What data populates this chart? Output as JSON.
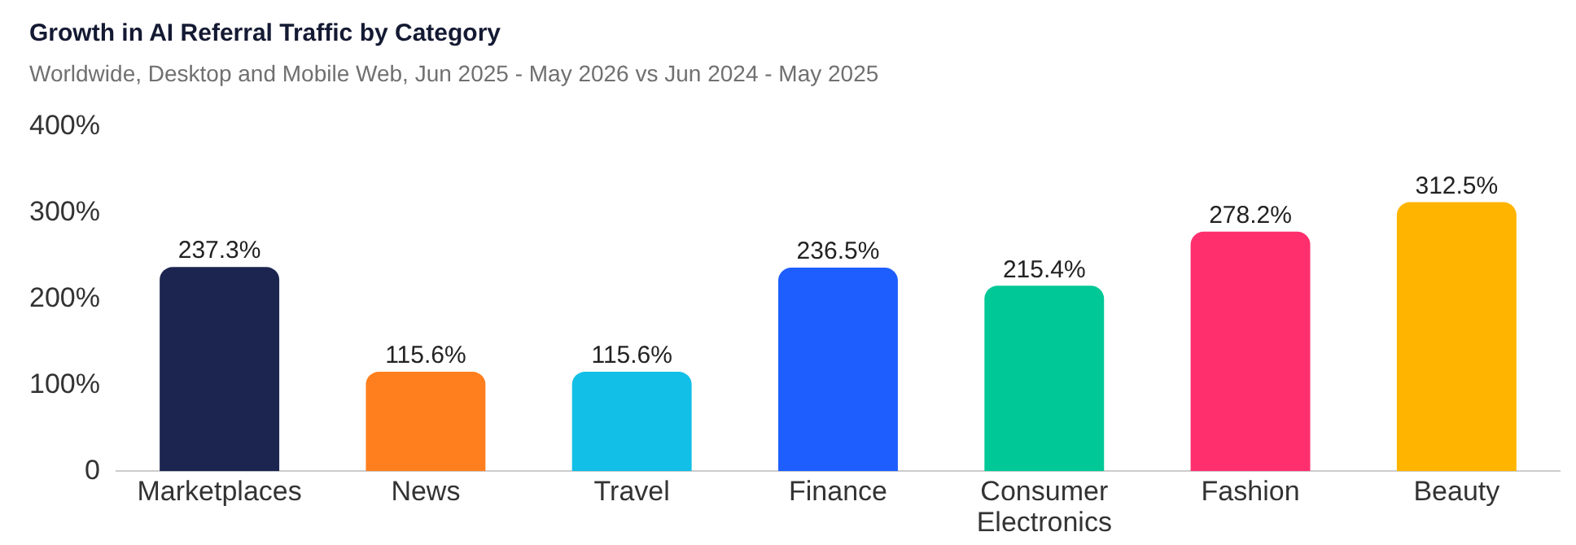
{
  "chart_data": {
    "type": "bar",
    "title": "Growth in AI Referral Traffic by Category",
    "subtitle": "Worldwide, Desktop and Mobile Web, Jun 2025 - May 2026 vs Jun 2024 - May 2025",
    "categories": [
      "Marketplaces",
      "News",
      "Travel",
      "Finance",
      "Consumer Electronics",
      "Fashion",
      "Beauty"
    ],
    "values": [
      237.3,
      115.6,
      115.6,
      236.5,
      215.4,
      278.2,
      312.5
    ],
    "colors": [
      "#1c2550",
      "#ff7f1e",
      "#12bfe6",
      "#1e5eff",
      "#00c896",
      "#ff2f6e",
      "#ffb500"
    ],
    "value_labels": [
      "237.3%",
      "115.6%",
      "115.6%",
      "236.5%",
      "215.4%",
      "278.2%",
      "312.5%"
    ],
    "ylim": [
      0,
      400
    ],
    "yticks": [
      0,
      {
        "value": 100,
        "label": "100%"
      },
      {
        "value": 200,
        "label": "200%"
      },
      {
        "value": 300,
        "label": "300%"
      },
      {
        "value": 400,
        "label": "400%"
      }
    ],
    "grid": false,
    "legend": false
  }
}
